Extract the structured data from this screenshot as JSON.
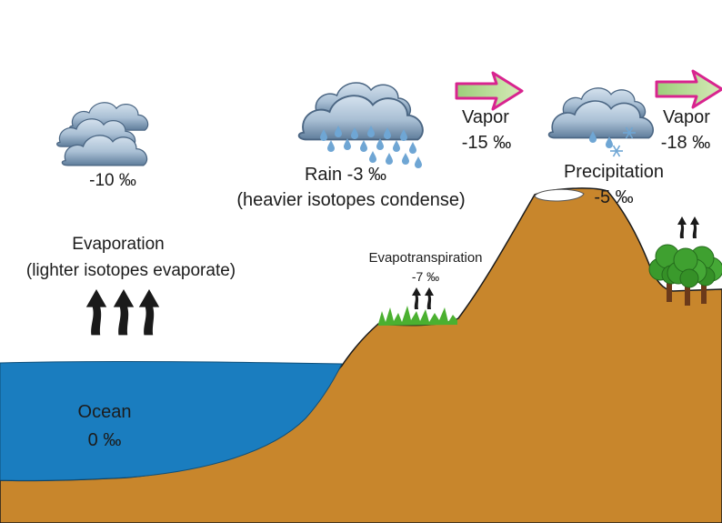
{
  "diagram": {
    "cloud_ocean": {
      "value": "-10 ‰"
    },
    "evaporation": {
      "label": "Evaporation",
      "note": "(lighter isotopes evaporate)"
    },
    "rain": {
      "label": "Rain -3 ‰",
      "note": "(heavier isotopes condense)"
    },
    "vapor_1": {
      "label": "Vapor",
      "value": "-15 ‰"
    },
    "precipitation": {
      "label": "Precipitation",
      "value": "-5 ‰"
    },
    "vapor_2": {
      "label": "Vapor",
      "value": "-18 ‰"
    },
    "evapotranspiration": {
      "label": "Evapotranspiration",
      "value": "-7 ‰"
    },
    "ocean": {
      "label": "Ocean",
      "value": "0 ‰"
    }
  },
  "colors": {
    "ocean": "#1a7dbf",
    "land": "#c8862c",
    "cloud_light": "#c5d6e6",
    "cloud_dark": "#5f7d9b",
    "raindrop": "#6fa6d4",
    "arrow_fill": "#b5d78b",
    "arrow_outline": "#d8248f",
    "grass": "#4bb030",
    "tree": "#3a9a2c",
    "trunk": "#6b3a1a"
  }
}
